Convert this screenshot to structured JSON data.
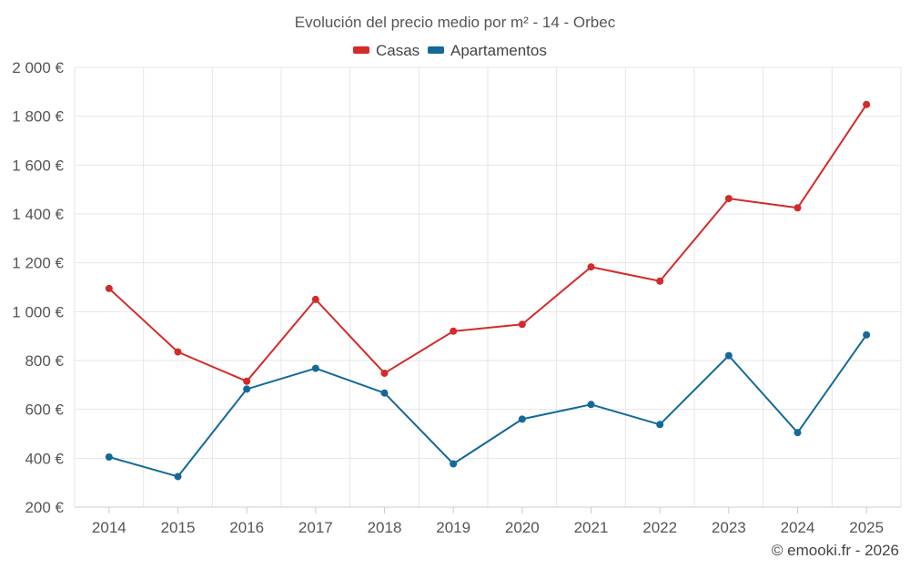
{
  "chart_data": {
    "type": "line",
    "title": "Evolución del precio medio por m² - 14 - Orbec",
    "categories": [
      "2014",
      "2015",
      "2016",
      "2017",
      "2018",
      "2019",
      "2020",
      "2021",
      "2022",
      "2023",
      "2024",
      "2025"
    ],
    "series": [
      {
        "name": "Casas",
        "color": "#d42a2a",
        "values": [
          1095,
          835,
          715,
          1050,
          748,
          920,
          948,
          1183,
          1125,
          1463,
          1425,
          1848
        ]
      },
      {
        "name": "Apartamentos",
        "color": "#13699a",
        "values": [
          405,
          325,
          683,
          768,
          667,
          377,
          560,
          620,
          538,
          820,
          505,
          905
        ]
      }
    ],
    "ylim": [
      200,
      2000
    ],
    "yticks": [
      200,
      400,
      600,
      800,
      1000,
      1200,
      1400,
      1600,
      1800,
      2000
    ],
    "ytick_labels": [
      "200 €",
      "400 €",
      "600 €",
      "800 €",
      "1 000 €",
      "1 200 €",
      "1 400 €",
      "1 600 €",
      "1 800 €",
      "2 000 €"
    ],
    "xlabel": "",
    "ylabel": "",
    "grid": true,
    "legend_position": "top-center"
  },
  "credit": "© emooki.fr - 2026"
}
